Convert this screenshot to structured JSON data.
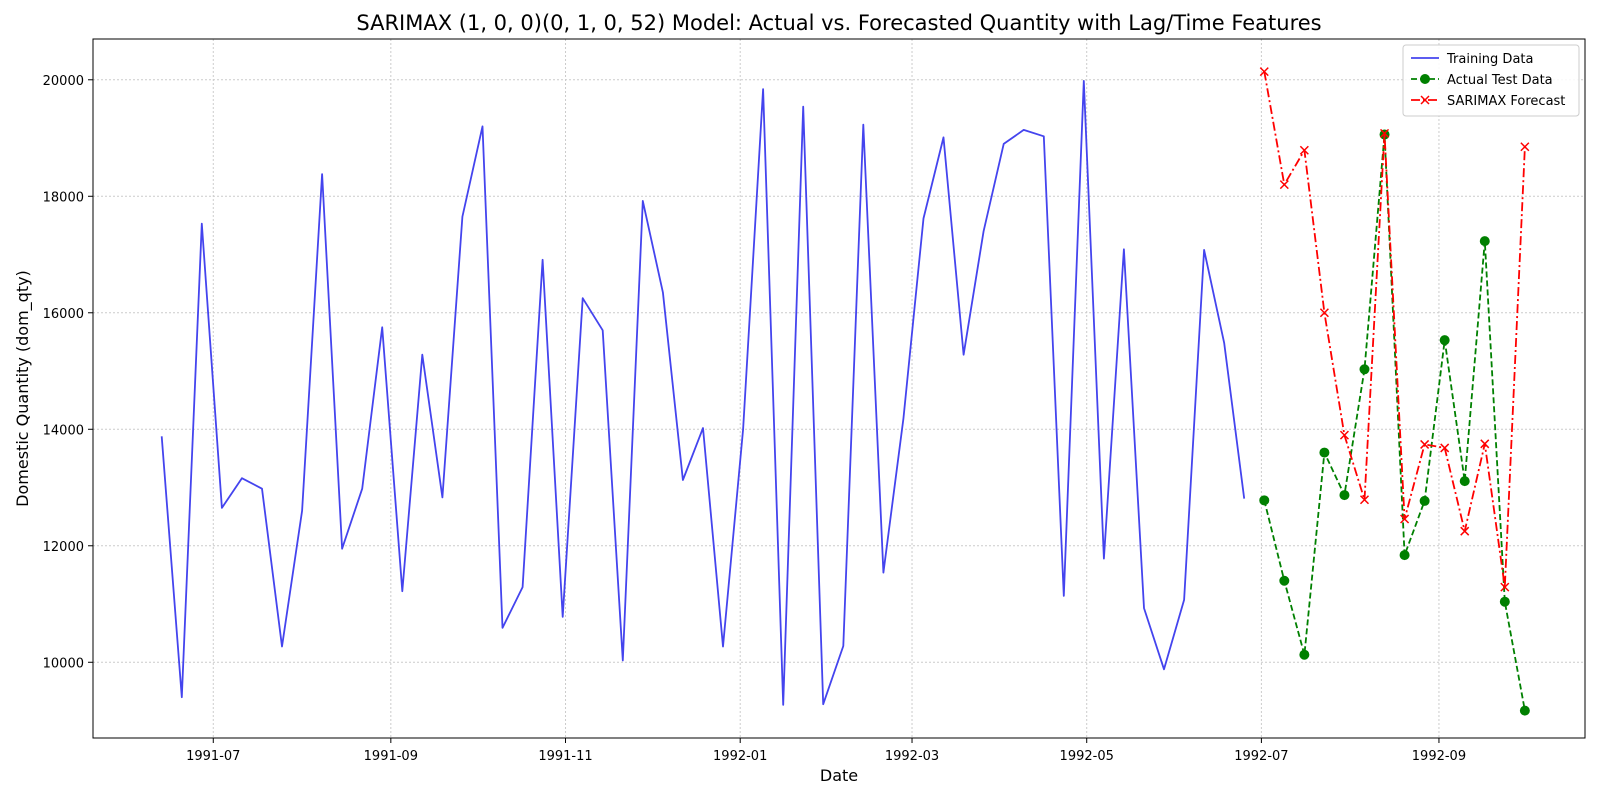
{
  "chart_data": {
    "type": "line",
    "title": "SARIMAX (1, 0, 0)(0, 1, 0, 52) Model: Actual vs. Forecasted Quantity with Lag/Time Features",
    "xlabel": "Date",
    "ylabel": "Domestic Quantity (dom_qty)",
    "x_range": [
      "1991-05-20",
      "1992-10-22"
    ],
    "ylim": [
      8700,
      20700
    ],
    "grid": true,
    "grid_style": "dotted",
    "legend_position": "top-right",
    "x_ticks": [
      "1991-07",
      "1991-09",
      "1991-11",
      "1992-01",
      "1992-03",
      "1992-05",
      "1992-07",
      "1992-09"
    ],
    "y_ticks": [
      10000,
      12000,
      14000,
      16000,
      18000,
      20000
    ],
    "series": [
      {
        "name": "Training Data",
        "color": "#4444ee",
        "style": "solid",
        "marker": "none",
        "x": [
          "1991-06-13",
          "1991-06-20",
          "1991-06-27",
          "1991-07-04",
          "1991-07-11",
          "1991-07-18",
          "1991-07-25",
          "1991-08-01",
          "1991-08-08",
          "1991-08-15",
          "1991-08-22",
          "1991-08-29",
          "1991-09-05",
          "1991-09-12",
          "1991-09-19",
          "1991-09-26",
          "1991-10-03",
          "1991-10-10",
          "1991-10-17",
          "1991-10-24",
          "1991-10-31",
          "1991-11-07",
          "1991-11-14",
          "1991-11-21",
          "1991-11-28",
          "1991-12-05",
          "1991-12-12",
          "1991-12-19",
          "1991-12-26",
          "1992-01-02",
          "1992-01-09",
          "1992-01-16",
          "1992-01-23",
          "1992-01-30",
          "1992-02-06",
          "1992-02-13",
          "1992-02-20",
          "1992-02-27",
          "1992-03-05",
          "1992-03-12",
          "1992-03-19",
          "1992-03-26",
          "1992-04-02",
          "1992-04-09",
          "1992-04-16",
          "1992-04-23",
          "1992-04-30",
          "1992-05-07",
          "1992-05-14",
          "1992-05-21",
          "1992-05-28",
          "1992-06-04",
          "1992-06-11",
          "1992-06-18",
          "1992-06-25"
        ],
        "values": [
          13880,
          9400,
          17530,
          12650,
          13160,
          12980,
          10270,
          12600,
          18380,
          11950,
          12980,
          15750,
          11220,
          15280,
          12830,
          17650,
          19200,
          10590,
          11290,
          16910,
          10780,
          16250,
          15700,
          10030,
          17920,
          16350,
          13130,
          14020,
          10270,
          14000,
          19840,
          9270,
          19540,
          9280,
          10280,
          19230,
          11540,
          14180,
          17620,
          19010,
          15280,
          17400,
          18900,
          19140,
          19030,
          11140,
          19980,
          11780,
          17090,
          10930,
          9880,
          11070,
          17080,
          15480,
          12810
        ]
      },
      {
        "name": "Actual Test Data",
        "color": "#008000",
        "style": "dashed",
        "marker": "circle",
        "x": [
          "1992-07-02",
          "1992-07-09",
          "1992-07-16",
          "1992-07-23",
          "1992-07-30",
          "1992-08-06",
          "1992-08-13",
          "1992-08-20",
          "1992-08-27",
          "1992-09-03",
          "1992-09-10",
          "1992-09-17",
          "1992-09-24",
          "1992-10-01"
        ],
        "values": [
          12780,
          11400,
          10130,
          13600,
          12870,
          15030,
          19060,
          11840,
          12770,
          15530,
          13110,
          17230,
          11040,
          9170
        ]
      },
      {
        "name": "SARIMAX Forecast",
        "color": "#ff0000",
        "style": "dashdot",
        "marker": "x",
        "x": [
          "1992-07-02",
          "1992-07-09",
          "1992-07-16",
          "1992-07-23",
          "1992-07-30",
          "1992-08-06",
          "1992-08-13",
          "1992-08-20",
          "1992-08-27",
          "1992-09-03",
          "1992-09-10",
          "1992-09-17",
          "1992-09-24",
          "1992-10-01"
        ],
        "values": [
          20140,
          18200,
          18790,
          16000,
          13900,
          12790,
          19080,
          12460,
          13740,
          13680,
          12250,
          13750,
          11290,
          18850
        ]
      }
    ]
  }
}
